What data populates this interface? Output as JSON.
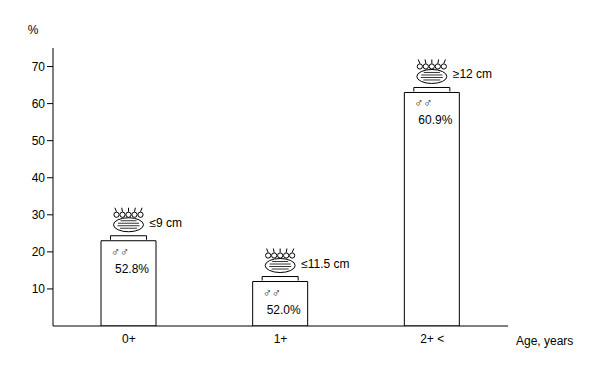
{
  "chart_data": {
    "type": "bar",
    "categories": [
      "0+",
      "1+",
      "2+ <"
    ],
    "values": [
      23,
      12,
      63
    ],
    "color": "#ffffff",
    "ylim": [
      0,
      75
    ],
    "yticks": [
      10,
      20,
      30,
      40,
      50,
      60,
      70
    ],
    "grid": false,
    "y_label": "%",
    "x_label": "Age, years",
    "bar_annotations": [
      {
        "size": "≤9 cm",
        "sex": "♂♂",
        "share": "52.8%"
      },
      {
        "size": "≤11.5 cm",
        "sex": "♂♂",
        "share": "52.0%"
      },
      {
        "size": "≥12 cm",
        "sex": "♂♂",
        "share": "60.9%"
      }
    ]
  }
}
